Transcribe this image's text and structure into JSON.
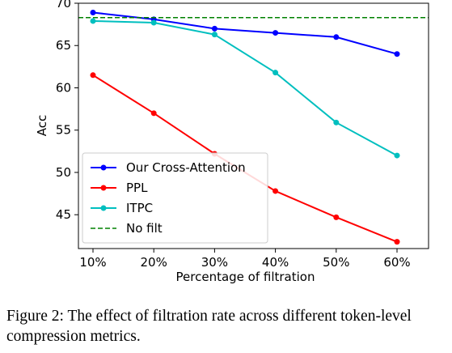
{
  "chart_data": {
    "type": "line",
    "categories": [
      "10%",
      "20%",
      "30%",
      "40%",
      "50%",
      "60%"
    ],
    "xlabel": "Percentage of filtration",
    "ylabel": "Acc",
    "ylim": [
      41,
      70
    ],
    "yticks": [
      45,
      50,
      55,
      60,
      65,
      70
    ],
    "grid": false,
    "legend_position": "lower-left",
    "series": [
      {
        "name": "Our Cross-Attention",
        "values": [
          68.9,
          68.1,
          67.0,
          66.5,
          66.0,
          64.0
        ],
        "color": "#0000ff",
        "style": "solid",
        "marker": true
      },
      {
        "name": "PPL",
        "values": [
          61.5,
          57.0,
          52.2,
          47.8,
          44.7,
          41.8
        ],
        "color": "#ff0000",
        "style": "solid",
        "marker": true
      },
      {
        "name": "ITPC",
        "values": [
          67.9,
          67.7,
          66.3,
          61.8,
          55.9,
          52.0
        ],
        "color": "#00bfbf",
        "style": "solid",
        "marker": true
      },
      {
        "name": "No filt",
        "values": [
          68.3,
          68.3,
          68.3,
          68.3,
          68.3,
          68.3
        ],
        "color": "#008000",
        "style": "dashed",
        "marker": false
      }
    ]
  },
  "caption": "Figure 2: The effect of filtration rate across different token-level compression metrics."
}
